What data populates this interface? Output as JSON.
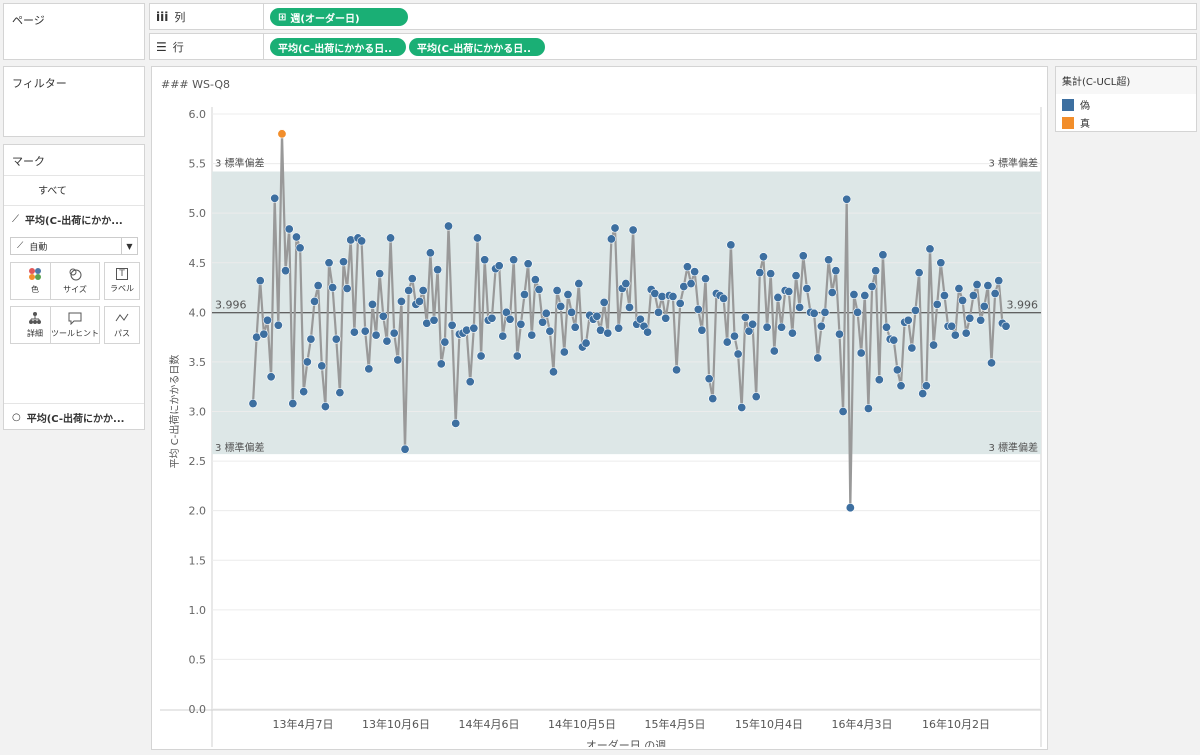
{
  "left": {
    "pages_title": "ページ",
    "filters_title": "フィルター",
    "marks_title": "マーク",
    "marks_all": "すべて",
    "marks_series1": "平均(C-出荷にかか...",
    "marks_type": "自動",
    "mark_buttons": [
      "色",
      "サイズ",
      "ラベル",
      "詳細",
      "ツールヒント",
      "パス"
    ],
    "marks_series2": "平均(C-出荷にかか..."
  },
  "shelves": {
    "columns_label": "列",
    "columns_pill": "週(オーダー日)",
    "rows_label": "行",
    "rows_pills": [
      "平均(C-出荷にかかる日..",
      "平均(C-出荷にかかる日.."
    ]
  },
  "sheet": {
    "title": "### WS-Q8"
  },
  "legend": {
    "title": "集計(C-UCL超)",
    "items": [
      {
        "label": "偽",
        "color": "#3d6fa0"
      },
      {
        "label": "真",
        "color": "#f28e2b"
      }
    ]
  },
  "chart_data": {
    "type": "line",
    "ylabel": "平均 C-出荷にかかる日数",
    "xlabel": "オーダー日 の週",
    "ylim": [
      0,
      6
    ],
    "yticks": [
      "6.0",
      "5.5",
      "5.0",
      "4.5",
      "4.0",
      "3.5",
      "3.0",
      "2.5",
      "2.0",
      "1.5",
      "1.0",
      "0.5",
      "0.0"
    ],
    "xticks": [
      "13年4月7日",
      "13年10月6日",
      "14年4月6日",
      "14年10月5日",
      "15年4月5日",
      "15年10月4日",
      "16年4月3日",
      "16年10月2日"
    ],
    "mean_label": "3.996",
    "mean": 3.996,
    "band_label": "3 標準偏差",
    "band_upper": 5.42,
    "band_lower": 2.57,
    "highlight_color": "#f28e2b",
    "point_color": "#3d6fa0",
    "line_color": "#999999",
    "values": [
      3.08,
      3.75,
      4.32,
      3.78,
      3.92,
      3.35,
      5.15,
      3.87,
      5.8,
      4.42,
      4.84,
      3.08,
      4.76,
      4.65,
      3.2,
      3.5,
      3.73,
      4.11,
      4.27,
      3.46,
      3.05,
      4.5,
      4.25,
      3.73,
      3.19,
      4.51,
      4.24,
      4.73,
      3.8,
      4.75,
      4.72,
      3.81,
      3.43,
      4.08,
      3.77,
      4.39,
      3.96,
      3.71,
      4.75,
      3.79,
      3.52,
      4.11,
      2.62,
      4.22,
      4.34,
      4.08,
      4.11,
      4.22,
      3.89,
      4.6,
      3.92,
      4.43,
      3.48,
      3.7,
      4.87,
      3.87,
      2.88,
      3.78,
      3.79,
      3.82,
      3.3,
      3.84,
      4.75,
      3.56,
      4.53,
      3.92,
      3.94,
      4.44,
      4.47,
      3.76,
      4.0,
      3.93,
      4.53,
      3.56,
      3.88,
      4.18,
      4.49,
      3.77,
      4.33,
      4.23,
      3.9,
      3.99,
      3.81,
      3.4,
      4.22,
      4.06,
      3.6,
      4.18,
      4.0,
      3.85,
      4.29,
      3.65,
      3.69,
      3.97,
      3.93,
      3.96,
      3.82,
      4.1,
      3.79,
      4.74,
      4.85,
      3.84,
      4.24,
      4.29,
      4.05,
      4.83,
      3.88,
      3.93,
      3.86,
      3.8,
      4.23,
      4.19,
      4.0,
      4.16,
      3.94,
      4.17,
      4.16,
      3.42,
      4.09,
      4.26,
      4.46,
      4.29,
      4.41,
      4.03,
      3.82,
      4.34,
      3.33,
      3.13,
      4.19,
      4.17,
      4.14,
      3.7,
      4.68,
      3.76,
      3.58,
      3.04,
      3.95,
      3.81,
      3.88,
      3.15,
      4.4,
      4.56,
      3.85,
      4.39,
      3.61,
      4.15,
      3.85,
      4.22,
      4.21,
      3.79,
      4.37,
      4.05,
      4.57,
      4.24,
      4.0,
      3.99,
      3.54,
      3.86,
      4.0,
      4.53,
      4.2,
      4.42,
      3.78,
      3.0,
      5.14,
      2.03,
      4.18,
      4.0,
      3.59,
      4.17,
      3.03,
      4.26,
      4.42,
      3.32,
      4.58,
      3.85,
      3.73,
      3.72,
      3.42,
      3.26,
      3.9,
      3.92,
      3.64,
      4.02,
      4.4,
      3.18,
      3.26,
      4.64,
      3.67,
      4.08,
      4.5,
      4.17,
      3.86,
      3.86,
      3.77,
      4.24,
      4.12,
      3.79,
      3.94,
      4.17,
      4.28,
      3.92,
      4.06,
      4.27,
      3.49,
      4.19,
      4.32,
      3.89,
      3.86
    ]
  }
}
